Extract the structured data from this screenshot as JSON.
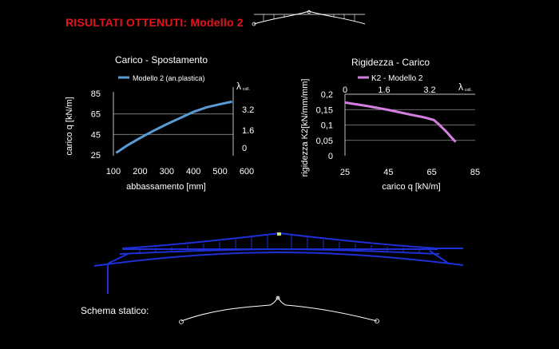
{
  "header": {
    "title": "RISULTATI OTTENUTI:  Modello 2"
  },
  "chart_data": [
    {
      "type": "line",
      "title": "Carico - Spostamento",
      "xlabel": "abbassamento [mm]",
      "ylabel": "carico q [kN/m]",
      "secondary_axis_label": "λ",
      "secondary_axis_subscript": "coll.",
      "x_ticks": [
        "100",
        "200",
        "300",
        "400",
        "500",
        "600"
      ],
      "y_ticks": [
        "25",
        "45",
        "65",
        "85"
      ],
      "secondary_ticks": [
        "0",
        "1.6",
        "3.2"
      ],
      "xlim": [
        100,
        600
      ],
      "ylim": [
        25,
        85
      ],
      "grid": "horizontal",
      "legend_position": "top",
      "series": [
        {
          "name": "Modello 2 (an.plastica)",
          "color": "#5b9bd5",
          "x": [
            110,
            150,
            200,
            250,
            300,
            350,
            400,
            450,
            500,
            545
          ],
          "y": [
            27,
            34,
            41.5,
            48.5,
            55,
            61,
            67,
            71.5,
            74.5,
            77
          ]
        }
      ]
    },
    {
      "type": "line",
      "title": "Rigidezza - Carico",
      "xlabel": "carico q [kN/m]",
      "ylabel": "rigidezza K2[kN/mm/mm]",
      "secondary_axis_label": "λ",
      "secondary_axis_subscript": "coll.",
      "x_ticks": [
        "25",
        "45",
        "65",
        "85"
      ],
      "y_ticks": [
        "0",
        "0,05",
        "0,1",
        "0,15",
        "0,2"
      ],
      "secondary_ticks": [
        "0",
        "1.6",
        "3.2"
      ],
      "xlim": [
        25,
        85
      ],
      "ylim": [
        0,
        0.2
      ],
      "grid": "horizontal",
      "legend_position": "top",
      "series": [
        {
          "name": "K2 - Modello 2",
          "color": "#d47fe0",
          "x": [
            25,
            35,
            45,
            55,
            62,
            66,
            68,
            70,
            72,
            74,
            76
          ],
          "y": [
            0.173,
            0.162,
            0.149,
            0.134,
            0.124,
            0.116,
            0.104,
            0.09,
            0.076,
            0.06,
            0.045
          ]
        }
      ]
    }
  ],
  "schema": {
    "label": "Schema statico:"
  },
  "colors": {
    "title": "#e8121a",
    "structure": "#1e2fd8",
    "text": "#ffffff"
  }
}
